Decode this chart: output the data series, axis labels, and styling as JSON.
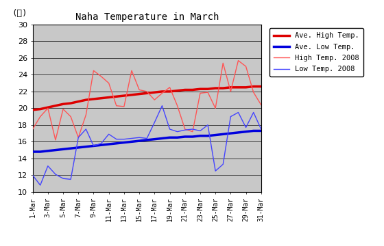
{
  "title": "Naha Temperature in March",
  "ylabel": "(℃)",
  "ylim": [
    10,
    30
  ],
  "yticks": [
    10,
    12,
    14,
    16,
    18,
    20,
    22,
    24,
    26,
    28,
    30
  ],
  "days": [
    1,
    2,
    3,
    4,
    5,
    6,
    7,
    8,
    9,
    10,
    11,
    12,
    13,
    14,
    15,
    16,
    17,
    18,
    19,
    20,
    21,
    22,
    23,
    24,
    25,
    26,
    27,
    28,
    29,
    30,
    31
  ],
  "xtick_labels": [
    "1-Mar",
    "3-Mar",
    "5-Mar",
    "7-Mar",
    "9-Mar",
    "11-Mar",
    "13-Mar",
    "15-Mar",
    "17-Mar",
    "19-Mar",
    "21-Mar",
    "23-Mar",
    "25-Mar",
    "27-Mar",
    "29-Mar",
    "31-Mar"
  ],
  "xtick_positions": [
    1,
    3,
    5,
    7,
    9,
    11,
    13,
    15,
    17,
    19,
    21,
    23,
    25,
    27,
    29,
    31
  ],
  "ave_high": [
    19.8,
    19.9,
    20.1,
    20.3,
    20.5,
    20.6,
    20.8,
    21.0,
    21.1,
    21.2,
    21.3,
    21.4,
    21.5,
    21.6,
    21.7,
    21.8,
    21.9,
    22.0,
    22.0,
    22.1,
    22.2,
    22.2,
    22.3,
    22.3,
    22.4,
    22.4,
    22.5,
    22.5,
    22.5,
    22.6,
    22.6
  ],
  "ave_low": [
    14.8,
    14.8,
    14.9,
    15.0,
    15.1,
    15.2,
    15.3,
    15.4,
    15.5,
    15.6,
    15.7,
    15.8,
    15.9,
    16.0,
    16.1,
    16.2,
    16.3,
    16.4,
    16.5,
    16.5,
    16.6,
    16.6,
    16.7,
    16.7,
    16.8,
    16.9,
    17.0,
    17.1,
    17.2,
    17.3,
    17.3
  ],
  "high_2008": [
    17.5,
    19.0,
    20.0,
    16.2,
    19.9,
    19.0,
    16.5,
    19.2,
    24.5,
    23.8,
    23.0,
    20.3,
    20.2,
    24.5,
    22.2,
    22.0,
    21.0,
    21.8,
    22.5,
    20.3,
    17.5,
    17.2,
    21.8,
    21.9,
    20.0,
    25.4,
    22.0,
    25.7,
    25.0,
    21.9,
    20.4
  ],
  "low_2008": [
    12.0,
    10.8,
    13.1,
    12.1,
    11.6,
    11.5,
    16.5,
    17.5,
    15.5,
    15.8,
    16.9,
    16.3,
    16.3,
    16.4,
    16.5,
    16.4,
    18.3,
    20.3,
    17.5,
    17.2,
    17.4,
    17.5,
    17.3,
    18.0,
    12.5,
    13.3,
    19.0,
    19.5,
    17.7,
    19.5,
    17.5
  ],
  "ave_high_color": "#dd0000",
  "ave_low_color": "#0000dd",
  "high_2008_color": "#ff5555",
  "low_2008_color": "#4444ff",
  "background_color": "#c8c8c8",
  "legend_labels": [
    "Ave. High Temp.",
    "Ave. Low Temp.",
    "High Temp. 2008",
    "Low Temp. 2008"
  ],
  "fig_width": 5.6,
  "fig_height": 3.6,
  "dpi": 100
}
